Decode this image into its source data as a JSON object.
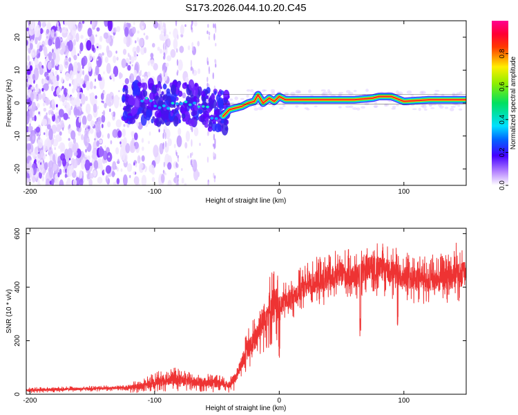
{
  "title": "S173.2026.044.10.20.C45",
  "chart_data": [
    {
      "type": "heatmap",
      "name": "spectrogram",
      "xlabel": "Height of straight line (km)",
      "ylabel": "Frequency (Hz)",
      "xlim": [
        -203,
        150
      ],
      "ylim": [
        -25,
        25
      ],
      "xticks": [
        -200,
        -100,
        0,
        100
      ],
      "yticks": [
        -20,
        -10,
        0,
        10,
        20
      ],
      "signal_track": {
        "x": [
          -120,
          -100,
          -80,
          -70,
          -60,
          -55,
          -50,
          -45,
          -40,
          -35,
          -30,
          -25,
          -20,
          -17,
          -13,
          -8,
          -4,
          0,
          5,
          10,
          20,
          40,
          60,
          75,
          80,
          90,
          100,
          120,
          150
        ],
        "y": [
          2,
          0,
          -1,
          0,
          -1.5,
          -3,
          -5,
          -4,
          -2,
          -1.5,
          -1,
          0,
          0.5,
          2.5,
          0,
          1.5,
          0.5,
          2,
          1,
          1,
          1,
          1,
          1,
          1.5,
          2,
          2,
          0.5,
          1,
          1
        ]
      },
      "colorbar": {
        "label": "Normalized spectral amplitude",
        "range": [
          0,
          1
        ],
        "ticks": [
          "0.0",
          "0.2",
          "0.4",
          "0.6",
          "0.8"
        ]
      }
    },
    {
      "type": "line",
      "name": "snr",
      "xlabel": "Height of straight line (km)",
      "ylabel": "SNR (10 * v/v)",
      "xlim": [
        -203,
        150
      ],
      "ylim": [
        0,
        620
      ],
      "xticks": [
        -200,
        -100,
        0,
        100
      ],
      "yticks": [
        0,
        200,
        400,
        600
      ],
      "series": [
        {
          "name": "SNR",
          "color": "#ee3333",
          "x": [
            -203,
            -180,
            -160,
            -140,
            -120,
            -110,
            -100,
            -90,
            -80,
            -70,
            -60,
            -50,
            -40,
            -35,
            -30,
            -25,
            -20,
            -15,
            -10,
            -5,
            0,
            10,
            20,
            30,
            40,
            50,
            60,
            65,
            70,
            80,
            90,
            100,
            110,
            120,
            130,
            140,
            150
          ],
          "y": [
            15,
            18,
            20,
            22,
            25,
            30,
            45,
            55,
            55,
            45,
            45,
            40,
            35,
            60,
            120,
            170,
            200,
            260,
            300,
            330,
            330,
            360,
            400,
            420,
            430,
            450,
            440,
            445,
            470,
            470,
            455,
            440,
            430,
            425,
            430,
            440,
            450
          ]
        }
      ]
    }
  ]
}
